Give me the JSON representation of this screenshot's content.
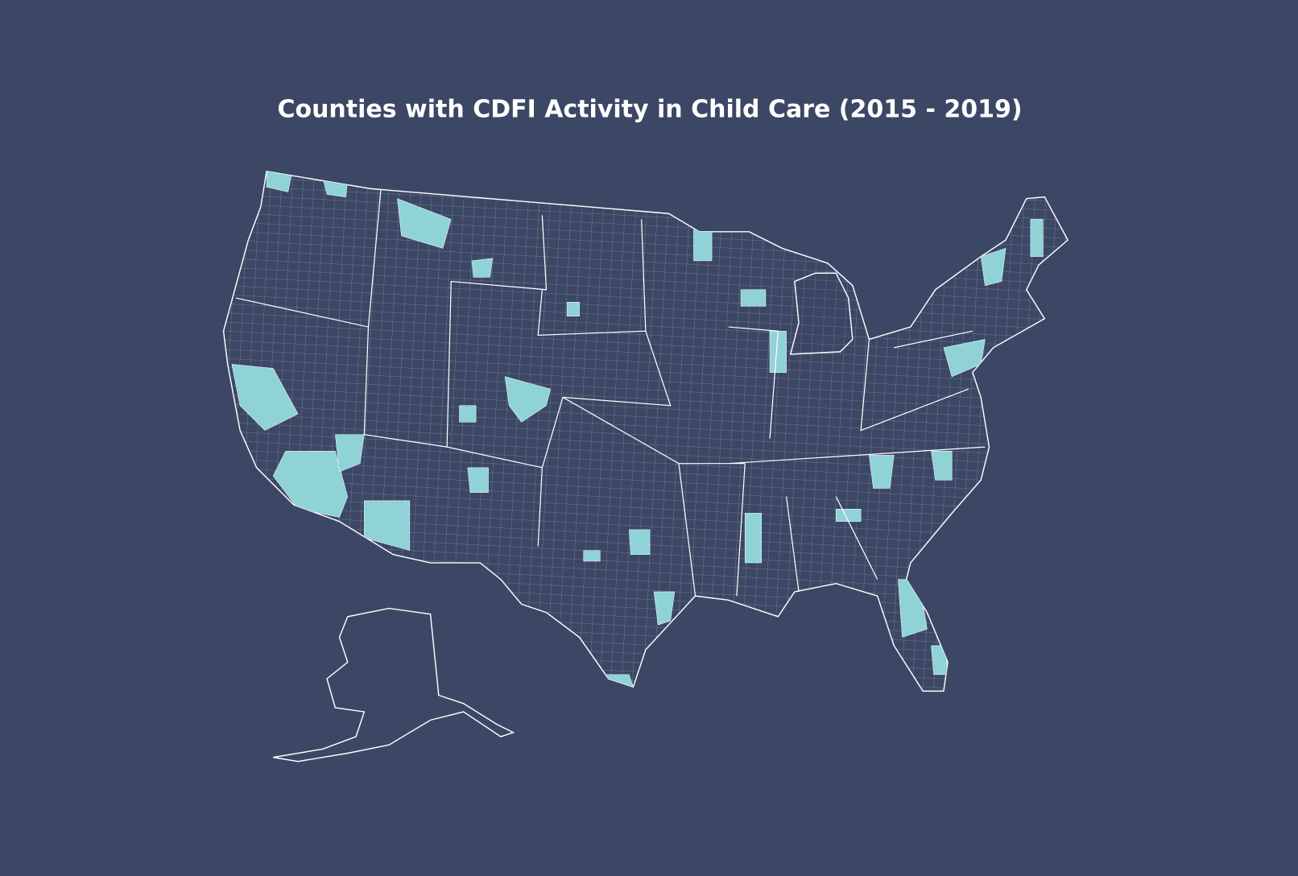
{
  "title": "Counties with CDFI Activity in Child Care (2015 - 2019)"
}
